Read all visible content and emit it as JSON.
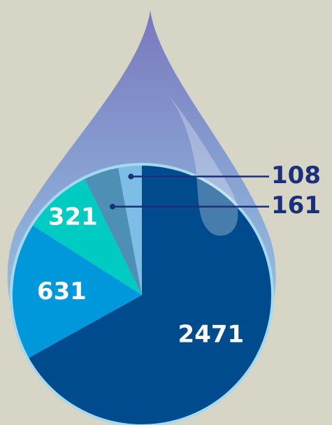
{
  "chart_data": {
    "type": "pie",
    "values": [
      2471,
      631,
      321,
      161,
      108
    ],
    "colors": [
      "#004b8d",
      "#0098da",
      "#00cbc2",
      "#4d8fb5",
      "#7fbde9"
    ],
    "start_angle": 0,
    "direction": "clockwise"
  }
}
